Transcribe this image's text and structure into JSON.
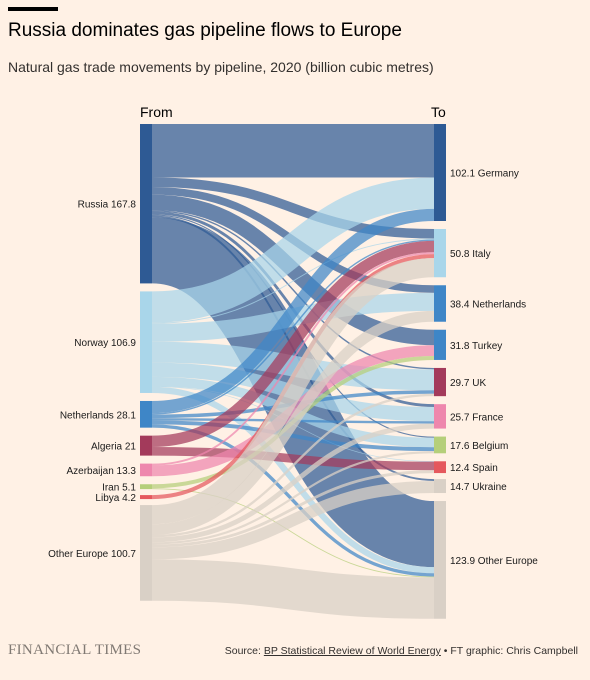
{
  "header": {
    "title": "Russia dominates gas pipeline flows to Europe",
    "subtitle": "Natural gas trade movements by pipeline, 2020 (billion cubic metres)"
  },
  "chart_data": {
    "type": "sankey",
    "from_header": "From",
    "to_header": "To",
    "sources": [
      {
        "name": "Russia",
        "value": 167.8,
        "label": "Russia 167.8",
        "color": "#2E5A94"
      },
      {
        "name": "Norway",
        "value": 106.9,
        "label": "Norway 106.9",
        "color": "#A9D6EA"
      },
      {
        "name": "Netherlands",
        "value": 28.1,
        "label": "Netherlands 28.1",
        "color": "#3E86C7"
      },
      {
        "name": "Algeria",
        "value": 21,
        "label": "Algeria 21",
        "color": "#A33A5B"
      },
      {
        "name": "Azerbaijan",
        "value": 13.3,
        "label": "Azerbaijan 13.3",
        "color": "#EE87AD"
      },
      {
        "name": "Iran",
        "value": 5.1,
        "label": "Iran 5.1",
        "color": "#B5CF7A"
      },
      {
        "name": "Libya",
        "value": 4.2,
        "label": "Libya 4.2",
        "color": "#E5585D"
      },
      {
        "name": "Other Europe",
        "value": 100.7,
        "label": "Other Europe 100.7",
        "color": "#D9D0C6"
      }
    ],
    "targets": [
      {
        "name": "Germany",
        "value": 102.1,
        "label": "102.1 Germany",
        "color": "#2E5A94"
      },
      {
        "name": "Italy",
        "value": 50.8,
        "label": "50.8 Italy",
        "color": "#A9D6EA"
      },
      {
        "name": "Netherlands",
        "value": 38.4,
        "label": "38.4 Netherlands",
        "color": "#3E86C7"
      },
      {
        "name": "Turkey",
        "value": 31.8,
        "label": "31.8 Turkey",
        "color": "#3E86C7"
      },
      {
        "name": "UK",
        "value": 29.7,
        "label": "29.7 UK",
        "color": "#A33A5B"
      },
      {
        "name": "France",
        "value": 25.7,
        "label": "25.7 France",
        "color": "#EE87AD"
      },
      {
        "name": "Belgium",
        "value": 17.6,
        "label": "17.6 Belgium",
        "color": "#B5CF7A"
      },
      {
        "name": "Spain",
        "value": 12.4,
        "label": "12.4 Spain",
        "color": "#E5585D"
      },
      {
        "name": "Ukraine",
        "value": 14.7,
        "label": "14.7 Ukraine",
        "color": "#D9D0C6"
      },
      {
        "name": "Other Europe",
        "value": 123.9,
        "label": "123.9 Other Europe",
        "color": "#D9D0C6"
      }
    ],
    "flows": [
      {
        "from": "Russia",
        "to": "Germany",
        "value": 56.3
      },
      {
        "from": "Russia",
        "to": "Italy",
        "value": 10
      },
      {
        "from": "Russia",
        "to": "Netherlands",
        "value": 8
      },
      {
        "from": "Russia",
        "to": "Turkey",
        "value": 16.3
      },
      {
        "from": "Russia",
        "to": "UK",
        "value": 1.5
      },
      {
        "from": "Russia",
        "to": "France",
        "value": 3
      },
      {
        "from": "Russia",
        "to": "Belgium",
        "value": 1.2
      },
      {
        "from": "Russia",
        "to": "Ukraine",
        "value": 2
      },
      {
        "from": "Russia",
        "to": "Other Europe",
        "value": 69.5
      },
      {
        "from": "Norway",
        "to": "Germany",
        "value": 33
      },
      {
        "from": "Norway",
        "to": "Italy",
        "value": 1
      },
      {
        "from": "Norway",
        "to": "Netherlands",
        "value": 19
      },
      {
        "from": "Norway",
        "to": "UK",
        "value": 22
      },
      {
        "from": "Norway",
        "to": "France",
        "value": 15
      },
      {
        "from": "Norway",
        "to": "Belgium",
        "value": 10
      },
      {
        "from": "Norway",
        "to": "Spain",
        "value": 0.4
      },
      {
        "from": "Norway",
        "to": "Other Europe",
        "value": 6.5
      },
      {
        "from": "Netherlands",
        "to": "Germany",
        "value": 12.8
      },
      {
        "from": "Netherlands",
        "to": "Italy",
        "value": 1.5
      },
      {
        "from": "Netherlands",
        "to": "UK",
        "value": 3.7
      },
      {
        "from": "Netherlands",
        "to": "France",
        "value": 2.5
      },
      {
        "from": "Netherlands",
        "to": "Belgium",
        "value": 4.1
      },
      {
        "from": "Netherlands",
        "to": "Other Europe",
        "value": 3.5
      },
      {
        "from": "Algeria",
        "to": "Italy",
        "value": 12
      },
      {
        "from": "Algeria",
        "to": "Spain",
        "value": 9
      },
      {
        "from": "Azerbaijan",
        "to": "Italy",
        "value": 2
      },
      {
        "from": "Azerbaijan",
        "to": "Turkey",
        "value": 11.3
      },
      {
        "from": "Iran",
        "to": "Turkey",
        "value": 4.2
      },
      {
        "from": "Iran",
        "to": "Other Europe",
        "value": 0.9
      },
      {
        "from": "Libya",
        "to": "Italy",
        "value": 4.2
      },
      {
        "from": "Other Europe",
        "to": "Italy",
        "value": 20.1
      },
      {
        "from": "Other Europe",
        "to": "Netherlands",
        "value": 11.4
      },
      {
        "from": "Other Europe",
        "to": "UK",
        "value": 2.5
      },
      {
        "from": "Other Europe",
        "to": "France",
        "value": 5.2
      },
      {
        "from": "Other Europe",
        "to": "Belgium",
        "value": 2.3
      },
      {
        "from": "Other Europe",
        "to": "Spain",
        "value": 3
      },
      {
        "from": "Other Europe",
        "to": "Ukraine",
        "value": 12.7
      },
      {
        "from": "Other Europe",
        "to": "Other Europe",
        "value": 43.5
      }
    ]
  },
  "footer": {
    "logo": "FINANCIAL TIMES",
    "source_prefix": "Source: ",
    "source_link": "BP Statistical Review of World Energy",
    "source_suffix": " • FT graphic: Chris Campbell"
  }
}
